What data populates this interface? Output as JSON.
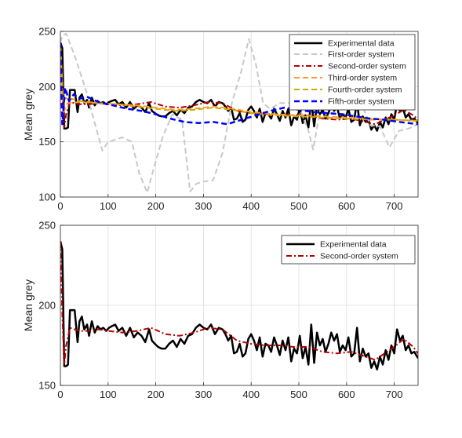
{
  "chart_data": [
    {
      "type": "line",
      "title": "",
      "xlabel": "",
      "ylabel": "Mean grey",
      "xlim": [
        0,
        750
      ],
      "ylim": [
        100,
        250
      ],
      "xticks": [
        0,
        100,
        200,
        300,
        400,
        500,
        600,
        700
      ],
      "yticks": [
        100,
        150,
        200,
        250
      ],
      "grid": true,
      "legend_position": "top-right",
      "series": [
        {
          "name": "Experimental data",
          "color": "#000000",
          "style": "solid",
          "x": [
            0,
            4,
            8,
            12,
            16,
            20,
            25,
            30,
            36,
            40,
            45,
            50,
            56,
            60,
            66,
            72,
            78,
            84,
            90,
            96,
            102,
            108,
            115,
            122,
            130,
            138,
            146,
            154,
            162,
            170,
            178,
            186,
            192,
            198,
            205,
            212,
            220,
            228,
            236,
            244,
            252,
            260,
            268,
            276,
            284,
            292,
            300,
            308,
            316,
            324,
            332,
            340,
            346,
            352,
            358,
            364,
            370,
            376,
            382,
            388,
            394,
            400,
            406,
            412,
            418,
            424,
            430,
            436,
            442,
            448,
            454,
            460,
            466,
            472,
            478,
            484,
            490,
            496,
            502,
            508,
            514,
            520,
            526,
            532,
            538,
            544,
            550,
            556,
            562,
            568,
            574,
            580,
            586,
            592,
            598,
            604,
            610,
            616,
            622,
            628,
            634,
            640,
            646,
            652,
            658,
            664,
            670,
            676,
            682,
            688,
            694,
            700,
            706,
            712,
            718,
            724,
            730,
            736,
            742,
            750
          ],
          "y": [
            240,
            235,
            162,
            162,
            163,
            197,
            197,
            197,
            177,
            190,
            193,
            185,
            188,
            181,
            190,
            183,
            187,
            185,
            186,
            184,
            186,
            187,
            188,
            184,
            186,
            181,
            186,
            180,
            183,
            181,
            177,
            185,
            178,
            176,
            174,
            173,
            173,
            176,
            178,
            174,
            179,
            176,
            181,
            182,
            186,
            188,
            186,
            185,
            188,
            182,
            186,
            185,
            182,
            178,
            181,
            170,
            171,
            176,
            168,
            170,
            179,
            182,
            178,
            172,
            180,
            168,
            176,
            175,
            171,
            180,
            175,
            169,
            178,
            172,
            180,
            165,
            173,
            170,
            181,
            167,
            174,
            163,
            188,
            164,
            183,
            175,
            179,
            171,
            176,
            183,
            178,
            182,
            171,
            175,
            172,
            180,
            168,
            170,
            186,
            165,
            173,
            168,
            170,
            161,
            165,
            160,
            168,
            163,
            172,
            166,
            175,
            170,
            185,
            178,
            181,
            172,
            175,
            170,
            171,
            167
          ]
        },
        {
          "name": "First-order system",
          "color": "#c8c8c8",
          "style": "dashed",
          "x": [
            0,
            4,
            12,
            30,
            55,
            70,
            88,
            100,
            115,
            130,
            150,
            165,
            182,
            195,
            215,
            235,
            255,
            272,
            285,
            300,
            320,
            340,
            360,
            380,
            395,
            410,
            425,
            440,
            460,
            480,
            500,
            520,
            530,
            545,
            570,
            600,
            630,
            650,
            670,
            690,
            710,
            730,
            750
          ],
          "y": [
            240,
            246,
            248,
            228,
            195,
            170,
            142,
            150,
            152,
            154,
            150,
            122,
            104,
            125,
            155,
            175,
            170,
            105,
            112,
            114,
            115,
            140,
            186,
            215,
            243,
            220,
            185,
            180,
            185,
            185,
            182,
            160,
            143,
            180,
            185,
            185,
            186,
            165,
            164,
            145,
            160,
            162,
            166
          ]
        },
        {
          "name": "Second-order system",
          "color": "#b40000",
          "style": "dashdot",
          "x": [
            0,
            4,
            8,
            12,
            20,
            40,
            60,
            80,
            100,
            130,
            160,
            190,
            220,
            250,
            280,
            310,
            340,
            370,
            400,
            430,
            460,
            490,
            520,
            550,
            580,
            610,
            640,
            660,
            680,
            700,
            720,
            740,
            750
          ],
          "y": [
            240,
            195,
            163,
            175,
            186,
            184,
            184,
            185,
            184,
            183,
            184,
            186,
            182,
            181,
            183,
            186,
            185,
            178,
            176,
            175,
            175,
            174,
            174,
            171,
            170,
            171,
            168,
            166,
            170,
            174,
            179,
            174,
            170
          ]
        },
        {
          "name": "Third-order system",
          "color": "#ff9a33",
          "style": "dashed",
          "x": [
            0,
            6,
            15,
            40,
            80,
            120,
            160,
            200,
            240,
            280,
            320,
            360,
            400,
            450,
            500,
            550,
            600,
            650,
            700,
            750
          ],
          "y": [
            238,
            176,
            185,
            186,
            185,
            184,
            183,
            181,
            179,
            180,
            182,
            180,
            177,
            175,
            174,
            173,
            172,
            171,
            170,
            169
          ]
        },
        {
          "name": "Fourth-order system",
          "color": "#d4a800",
          "style": "dashed",
          "x": [
            0,
            6,
            15,
            40,
            80,
            120,
            160,
            200,
            240,
            280,
            320,
            360,
            400,
            450,
            500,
            550,
            600,
            650,
            700,
            750
          ],
          "y": [
            236,
            188,
            190,
            187,
            185,
            184,
            182,
            180,
            178,
            179,
            181,
            179,
            176,
            174,
            173,
            172,
            171,
            170,
            170,
            169
          ]
        },
        {
          "name": "Fifth-order system",
          "color": "#0000ff",
          "style": "dashed",
          "x": [
            0,
            4,
            10,
            18,
            28,
            40,
            55,
            80,
            110,
            140,
            170,
            200,
            230,
            260,
            290,
            320,
            350,
            380,
            410,
            440,
            470,
            500,
            530,
            560,
            590,
            620,
            650,
            680,
            710,
            750
          ],
          "y": [
            240,
            166,
            199,
            187,
            193,
            189,
            191,
            186,
            183,
            180,
            178,
            175,
            171,
            168,
            167,
            168,
            166,
            170,
            174,
            178,
            181,
            179,
            177,
            176,
            175,
            173,
            171,
            170,
            168,
            166
          ]
        }
      ]
    },
    {
      "type": "line",
      "title": "",
      "xlabel": "",
      "ylabel": "Mean grey",
      "xlim": [
        0,
        750
      ],
      "ylim": [
        150,
        250
      ],
      "xticks": [
        0,
        100,
        200,
        300,
        400,
        500,
        600,
        700
      ],
      "yticks": [
        150,
        200,
        250
      ],
      "grid": true,
      "legend_position": "top-right",
      "series": [
        {
          "name": "Experimental data",
          "color": "#000000",
          "style": "solid",
          "x": [
            0,
            4,
            8,
            12,
            16,
            20,
            25,
            30,
            36,
            40,
            45,
            50,
            56,
            60,
            66,
            72,
            78,
            84,
            90,
            96,
            102,
            108,
            115,
            122,
            130,
            138,
            146,
            154,
            162,
            170,
            178,
            186,
            192,
            198,
            205,
            212,
            220,
            228,
            236,
            244,
            252,
            260,
            268,
            276,
            284,
            292,
            300,
            308,
            316,
            324,
            332,
            340,
            346,
            352,
            358,
            364,
            370,
            376,
            382,
            388,
            394,
            400,
            406,
            412,
            418,
            424,
            430,
            436,
            442,
            448,
            454,
            460,
            466,
            472,
            478,
            484,
            490,
            496,
            502,
            508,
            514,
            520,
            526,
            532,
            538,
            544,
            550,
            556,
            562,
            568,
            574,
            580,
            586,
            592,
            598,
            604,
            610,
            616,
            622,
            628,
            634,
            640,
            646,
            652,
            658,
            664,
            670,
            676,
            682,
            688,
            694,
            700,
            706,
            712,
            718,
            724,
            730,
            736,
            742,
            750
          ],
          "y": [
            240,
            235,
            162,
            162,
            163,
            197,
            197,
            197,
            177,
            190,
            193,
            185,
            188,
            181,
            190,
            183,
            187,
            185,
            186,
            184,
            186,
            187,
            188,
            184,
            186,
            181,
            186,
            180,
            183,
            181,
            177,
            185,
            178,
            176,
            174,
            173,
            173,
            176,
            178,
            174,
            179,
            176,
            181,
            182,
            186,
            188,
            186,
            185,
            188,
            182,
            186,
            185,
            182,
            178,
            181,
            170,
            171,
            176,
            168,
            170,
            179,
            182,
            178,
            172,
            180,
            168,
            176,
            175,
            171,
            180,
            175,
            169,
            178,
            172,
            180,
            165,
            173,
            170,
            181,
            167,
            174,
            163,
            188,
            164,
            183,
            175,
            179,
            171,
            176,
            183,
            178,
            182,
            171,
            175,
            172,
            180,
            168,
            170,
            186,
            165,
            173,
            168,
            170,
            161,
            165,
            160,
            168,
            163,
            172,
            166,
            175,
            170,
            185,
            178,
            181,
            172,
            175,
            170,
            171,
            167
          ]
        },
        {
          "name": "Second-order system",
          "color": "#b40000",
          "style": "dashdot",
          "x": [
            0,
            4,
            8,
            12,
            20,
            40,
            60,
            80,
            100,
            130,
            160,
            190,
            220,
            250,
            280,
            310,
            340,
            370,
            400,
            430,
            460,
            490,
            520,
            550,
            580,
            610,
            640,
            660,
            680,
            700,
            720,
            740,
            750
          ],
          "y": [
            240,
            195,
            163,
            175,
            186,
            184,
            184,
            185,
            184,
            183,
            184,
            186,
            182,
            181,
            183,
            186,
            185,
            178,
            176,
            175,
            175,
            174,
            174,
            171,
            170,
            171,
            168,
            166,
            170,
            174,
            179,
            174,
            170
          ]
        }
      ]
    }
  ]
}
